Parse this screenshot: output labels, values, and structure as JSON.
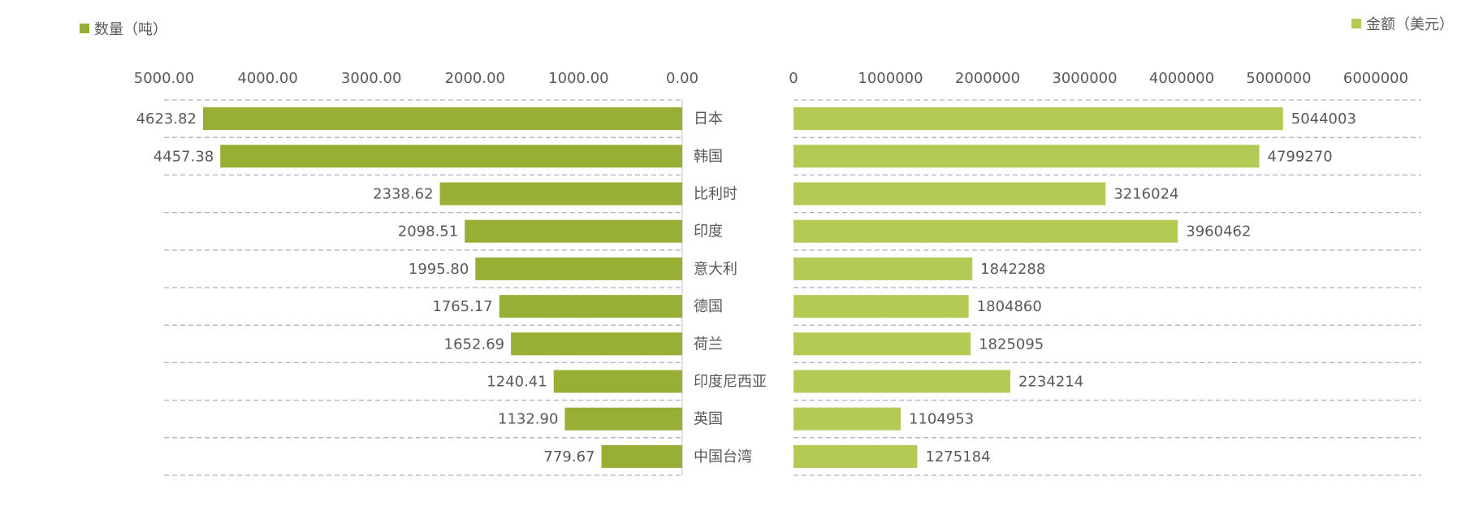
{
  "chart_data": {
    "type": "bar",
    "orientation": "horizontal-butterfly",
    "categories": [
      "日本",
      "韩国",
      "比利时",
      "印度",
      "意大利",
      "德国",
      "荷兰",
      "印度尼西亚",
      "英国",
      "中国台湾"
    ],
    "series": [
      {
        "name": "数量（吨）",
        "color": "#97AF34",
        "values": [
          4623.82,
          4457.38,
          2338.62,
          2098.51,
          1995.8,
          1765.17,
          1652.69,
          1240.41,
          1132.9,
          779.67
        ],
        "labels": [
          "4623.82",
          "4457.38",
          "2338.62",
          "2098.51",
          "1995.80",
          "1765.17",
          "1652.69",
          "1240.41",
          "1132.90",
          "779.67"
        ],
        "xlim": [
          0,
          5000
        ],
        "ticks": [
          "5000.00",
          "4000.00",
          "3000.00",
          "2000.00",
          "1000.00",
          "0.00"
        ],
        "tick_values": [
          5000,
          4000,
          3000,
          2000,
          1000,
          0
        ],
        "legend_position": "top-left"
      },
      {
        "name": "金额（美元）",
        "color": "#B3CB55",
        "values": [
          5044003,
          4799270,
          3216024,
          3960462,
          1842288,
          1804860,
          1825095,
          2234214,
          1104953,
          1275184
        ],
        "labels": [
          "5044003",
          "4799270",
          "3216024",
          "3960462",
          "1842288",
          "1804860",
          "1825095",
          "2234214",
          "1104953",
          "1275184"
        ],
        "xlim": [
          0,
          6000000
        ],
        "ticks": [
          "0",
          "1000000",
          "2000000",
          "3000000",
          "4000000",
          "5000000",
          "6000000"
        ],
        "tick_values": [
          0,
          1000000,
          2000000,
          3000000,
          4000000,
          5000000,
          6000000
        ],
        "legend_position": "top-right"
      }
    ],
    "grid": "dashed horizontal"
  }
}
